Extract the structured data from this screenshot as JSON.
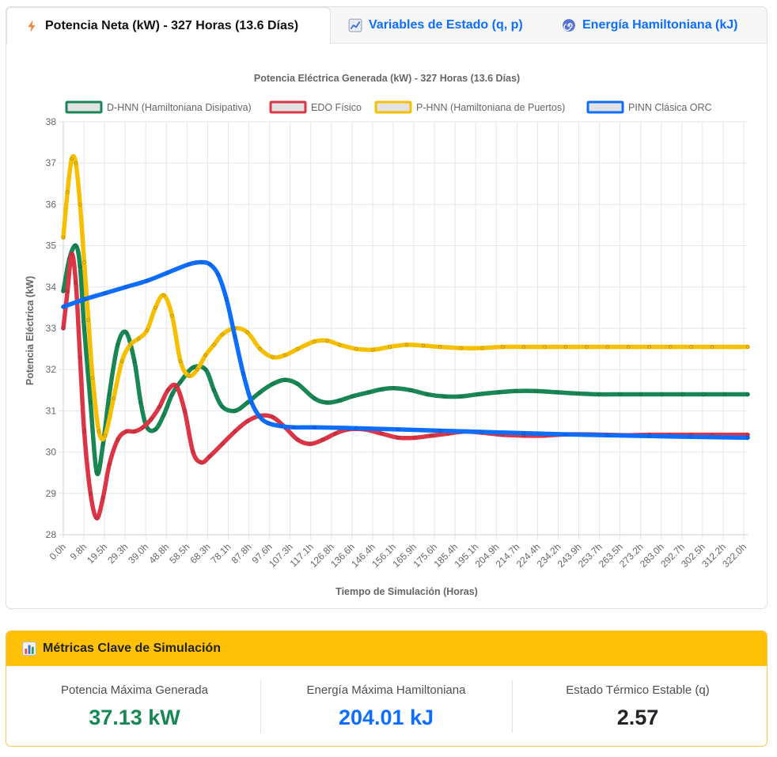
{
  "tabs": [
    {
      "label": "Potencia Neta (kW) - 327 Horas (13.6 Días)",
      "icon": "lightning-icon",
      "active": true
    },
    {
      "label": "Variables de Estado (q, p)",
      "icon": "chart-line-icon",
      "active": false
    },
    {
      "label": "Energía Hamiltoniana (kJ)",
      "icon": "spiral-icon",
      "active": false
    }
  ],
  "colors": {
    "accent": "#0d6efd",
    "warning": "#ffc107",
    "green": "#198754",
    "red": "#dc3545",
    "yellow": "#f6c000",
    "blue": "#0d6efd"
  },
  "chart_data": {
    "type": "line",
    "title": "Potencia Eléctrica Generada (kW) - 327 Horas (13.6 Días)",
    "xlabel": "Tiempo de Simulación (Horas)",
    "ylabel": "Potencia Eléctrica (kW)",
    "ylim": [
      28,
      38
    ],
    "yticks": [
      28,
      29,
      30,
      31,
      32,
      33,
      34,
      35,
      36,
      37,
      38
    ],
    "xlim": [
      0,
      327
    ],
    "xtick_labels": [
      "0.0h",
      "9.8h",
      "19.5h",
      "29.3h",
      "39.0h",
      "48.8h",
      "58.5h",
      "68.3h",
      "78.1h",
      "87.8h",
      "97.6h",
      "107.3h",
      "117.1h",
      "126.8h",
      "136.6h",
      "146.4h",
      "156.1h",
      "165.9h",
      "175.6h",
      "185.4h",
      "195.1h",
      "204.9h",
      "214.7h",
      "224.4h",
      "234.2h",
      "243.9h",
      "253.7h",
      "263.5h",
      "273.2h",
      "283.0h",
      "292.7h",
      "302.5h",
      "312.2h",
      "322.0h"
    ],
    "grid": true,
    "legend_position": "top",
    "series": [
      {
        "name": "D-HNN (Hamiltoniana Disipativa)",
        "color": "#198754",
        "x": [
          0,
          3,
          6,
          8,
          10,
          13,
          16,
          19,
          22,
          26,
          30,
          34,
          37,
          40,
          44,
          48,
          52,
          56,
          62,
          68,
          72,
          76,
          82,
          88,
          94,
          100,
          106,
          112,
          120,
          126,
          132,
          138,
          146,
          152,
          158,
          166,
          174,
          182,
          190,
          198,
          208,
          216,
          226,
          236,
          246,
          256,
          266,
          276,
          286,
          296,
          306,
          316,
          327
        ],
        "y": [
          33.9,
          34.7,
          35.0,
          34.5,
          33.0,
          31.2,
          29.5,
          30.2,
          31.4,
          32.6,
          32.9,
          32.2,
          31.2,
          30.6,
          30.55,
          30.9,
          31.4,
          31.7,
          32.05,
          32.0,
          31.5,
          31.1,
          31.0,
          31.2,
          31.45,
          31.65,
          31.75,
          31.65,
          31.3,
          31.2,
          31.25,
          31.35,
          31.45,
          31.52,
          31.55,
          31.5,
          31.4,
          31.35,
          31.35,
          31.4,
          31.45,
          31.48,
          31.48,
          31.45,
          31.42,
          31.4,
          31.4,
          31.4,
          31.4,
          31.4,
          31.4,
          31.4,
          31.4
        ]
      },
      {
        "name": "EDO Físico",
        "color": "#dc3545",
        "x": [
          0,
          2,
          4,
          6,
          8,
          10,
          13,
          16,
          19,
          22,
          26,
          30,
          34,
          38,
          42,
          46,
          50,
          54,
          58,
          62,
          66,
          70,
          76,
          82,
          88,
          94,
          100,
          106,
          112,
          118,
          124,
          130,
          136,
          144,
          152,
          160,
          168,
          176,
          184,
          192,
          200,
          210,
          220,
          230,
          240,
          250,
          260,
          270,
          280,
          290,
          300,
          310,
          327
        ],
        "y": [
          33.0,
          33.9,
          34.8,
          34.1,
          32.3,
          30.5,
          29.0,
          28.4,
          28.9,
          29.7,
          30.3,
          30.5,
          30.5,
          30.6,
          30.8,
          31.1,
          31.5,
          31.6,
          31.0,
          30.0,
          29.75,
          29.9,
          30.2,
          30.5,
          30.75,
          30.88,
          30.85,
          30.6,
          30.3,
          30.2,
          30.3,
          30.45,
          30.55,
          30.55,
          30.45,
          30.35,
          30.35,
          30.4,
          30.45,
          30.5,
          30.47,
          30.42,
          30.4,
          30.4,
          30.43,
          30.43,
          30.42,
          30.41,
          30.42,
          30.42,
          30.42,
          30.42,
          30.42
        ]
      },
      {
        "name": "P-HNN (Hamiltoniana de Puertos)",
        "color": "#f6c000",
        "x": [
          0,
          2,
          4,
          6,
          8,
          10,
          12,
          14,
          17,
          20,
          24,
          28,
          32,
          36,
          40,
          44,
          48,
          52,
          56,
          60,
          64,
          68,
          72,
          76,
          82,
          88,
          94,
          100,
          106,
          112,
          120,
          126,
          132,
          140,
          148,
          156,
          164,
          172,
          180,
          190,
          200,
          210,
          220,
          230,
          240,
          250,
          260,
          270,
          280,
          290,
          300,
          310,
          327
        ],
        "y": [
          35.2,
          36.3,
          37.1,
          37.0,
          36.0,
          34.6,
          33.2,
          31.8,
          30.5,
          30.4,
          31.3,
          32.2,
          32.6,
          32.75,
          32.95,
          33.5,
          33.8,
          33.3,
          32.2,
          31.85,
          32.0,
          32.35,
          32.6,
          32.85,
          33.0,
          32.9,
          32.5,
          32.3,
          32.35,
          32.5,
          32.68,
          32.7,
          32.6,
          32.5,
          32.48,
          32.55,
          32.6,
          32.58,
          32.55,
          32.52,
          32.52,
          32.55,
          32.55,
          32.55,
          32.55,
          32.55,
          32.55,
          32.55,
          32.55,
          32.55,
          32.55,
          32.55,
          32.55
        ]
      },
      {
        "name": "PINN Clásica ORC",
        "color": "#0d6efd",
        "x": [
          0,
          10,
          20,
          30,
          40,
          50,
          60,
          66,
          70,
          74,
          78,
          82,
          86,
          90,
          94,
          98,
          104,
          110,
          120,
          140,
          160,
          180,
          200,
          220,
          240,
          260,
          280,
          300,
          327
        ],
        "y": [
          33.52,
          33.7,
          33.85,
          34.0,
          34.15,
          34.35,
          34.55,
          34.6,
          34.55,
          34.3,
          33.7,
          32.8,
          31.9,
          31.2,
          30.85,
          30.7,
          30.63,
          30.6,
          30.6,
          30.58,
          30.55,
          30.52,
          30.49,
          30.46,
          30.43,
          30.41,
          30.39,
          30.37,
          30.35
        ]
      }
    ]
  },
  "metrics": {
    "header": "Métricas Clave de Simulación",
    "header_icon": "bar-chart-icon",
    "items": [
      {
        "label": "Potencia Máxima Generada",
        "value": "37.13 kW",
        "color": "#198754"
      },
      {
        "label": "Energía Máxima Hamiltoniana",
        "value": "204.01 kJ",
        "color": "#0d6efd"
      },
      {
        "label": "Estado Térmico Estable (q)",
        "value": "2.57",
        "color": "#212529"
      }
    ]
  }
}
